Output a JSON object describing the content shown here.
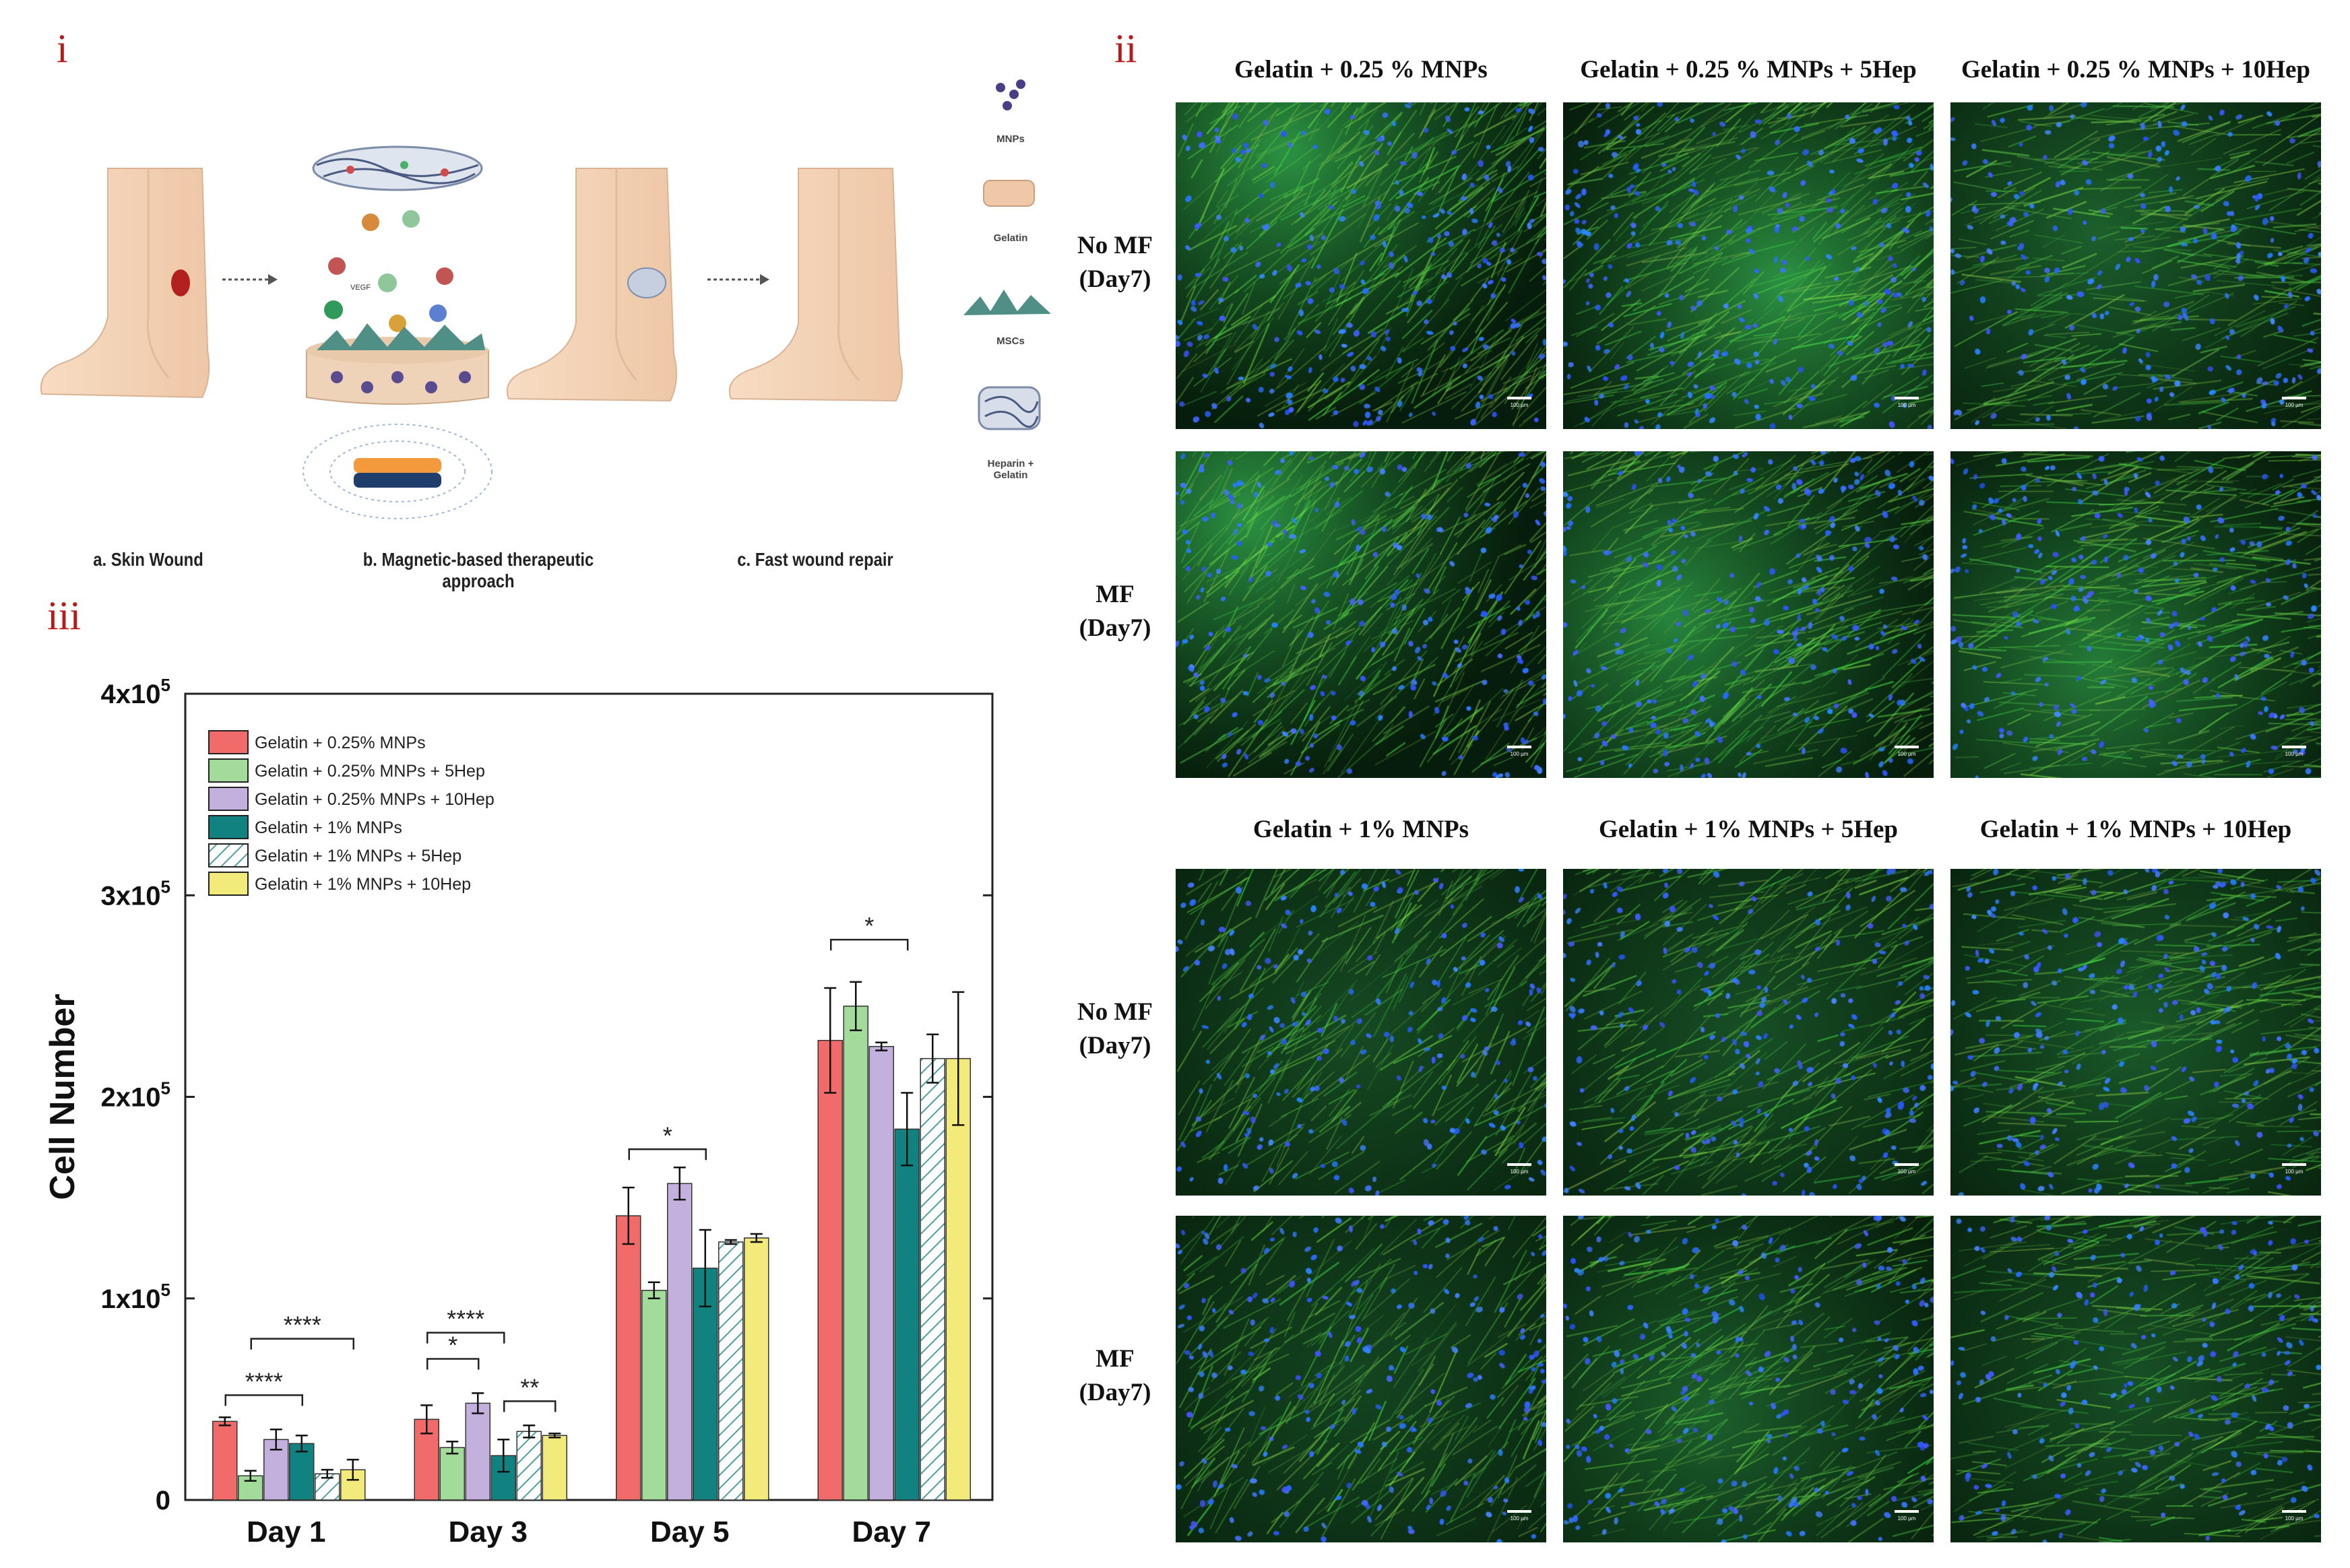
{
  "panels": {
    "i": "i",
    "ii": "ii",
    "iii": "iii"
  },
  "diagram": {
    "captions": {
      "a": "a. Skin Wound",
      "b": "b. Magnetic-based therapeutic approach",
      "c": "c. Fast wound repair"
    },
    "tags": {
      "vegf": "VEGF"
    },
    "legend": {
      "mnps": "MNPs",
      "gelatin": "Gelatin",
      "mscs": "MSCs",
      "heparin": "Heparin + Gelatin"
    }
  },
  "micrographs": {
    "top_columns": [
      "Gelatin + 0.25 % MNPs",
      "Gelatin + 0.25 % MNPs + 5Hep",
      "Gelatin + 0.25 % MNPs + 10Hep"
    ],
    "bottom_columns": [
      "Gelatin + 1% MNPs",
      "Gelatin + 1% MNPs + 5Hep",
      "Gelatin + 1% MNPs + 10Hep"
    ],
    "rows": [
      {
        "line1": "No MF",
        "line2": "(Day7)"
      },
      {
        "line1": "MF",
        "line2": "(Day7)"
      },
      {
        "line1": "No MF",
        "line2": "(Day7)"
      },
      {
        "line1": "MF",
        "line2": "(Day7)"
      }
    ],
    "scale_label": "100 µm",
    "colors": {
      "actin": "#2fd13c",
      "nuclei": "#2d5bff",
      "background": "#020806"
    }
  },
  "chart_data": {
    "type": "bar",
    "title": "",
    "xlabel": "",
    "ylabel": "Cell Number",
    "ylim": [
      0,
      400000
    ],
    "yticks": [
      {
        "value": 0,
        "label": "0",
        "exp": ""
      },
      {
        "value": 100000,
        "label": "1x10",
        "exp": "5"
      },
      {
        "value": 200000,
        "label": "2x10",
        "exp": "5"
      },
      {
        "value": 300000,
        "label": "3x10",
        "exp": "5"
      },
      {
        "value": 400000,
        "label": "4x10",
        "exp": "5"
      }
    ],
    "categories": [
      "Day 1",
      "Day 3",
      "Day 5",
      "Day 7"
    ],
    "legend_position": "top-left",
    "grid": false,
    "series": [
      {
        "name": "Gelatin + 0.25% MNPs",
        "color": "#f26b6b",
        "hatch": false,
        "values": [
          39000,
          40000,
          141000,
          228000
        ],
        "errors": [
          2000,
          7000,
          14000,
          26000
        ]
      },
      {
        "name": "Gelatin + 0.25% MNPs + 5Hep",
        "color": "#a3dc9a",
        "hatch": false,
        "values": [
          12000,
          26000,
          104000,
          245000
        ],
        "errors": [
          2500,
          3000,
          4000,
          12000
        ]
      },
      {
        "name": "Gelatin + 0.25% MNPs + 10Hep",
        "color": "#c3b0dc",
        "hatch": false,
        "values": [
          30000,
          48000,
          157000,
          225000
        ],
        "errors": [
          5000,
          5000,
          8000,
          2000
        ]
      },
      {
        "name": "Gelatin + 1% MNPs",
        "color": "#118280",
        "hatch": false,
        "values": [
          28000,
          22000,
          115000,
          184000
        ],
        "errors": [
          4000,
          8000,
          19000,
          18000
        ]
      },
      {
        "name": "Gelatin + 1% MNPs + 5Hep",
        "color": "#4f9ea0",
        "hatch": true,
        "values": [
          13000,
          34000,
          128000,
          219000
        ],
        "errors": [
          2000,
          3000,
          1000,
          12000
        ]
      },
      {
        "name": "Gelatin + 1% MNPs + 10Hep",
        "color": "#f2ea7a",
        "hatch": false,
        "values": [
          15000,
          32000,
          130000,
          219000
        ],
        "errors": [
          5000,
          1000,
          2000,
          33000
        ]
      }
    ],
    "significance": [
      {
        "label": "****",
        "category": 0,
        "from_series": 0,
        "to_series": 3,
        "y": 52000
      },
      {
        "label": "****",
        "category": 0,
        "from_series": 1,
        "to_series": 5,
        "y": 80000
      },
      {
        "label": "****",
        "category": 1,
        "from_series": 0,
        "to_series": 3,
        "y": 83000
      },
      {
        "label": "*",
        "category": 1,
        "from_series": 0,
        "to_series": 2,
        "y": 70000
      },
      {
        "label": "**",
        "category": 1,
        "from_series": 3,
        "to_series": 5,
        "y": 49000
      },
      {
        "label": "*",
        "category": 2,
        "from_series": 0,
        "to_series": 3,
        "y": 174000
      },
      {
        "label": "*",
        "category": 3,
        "from_series": 0,
        "to_series": 3,
        "y": 278000
      }
    ]
  }
}
